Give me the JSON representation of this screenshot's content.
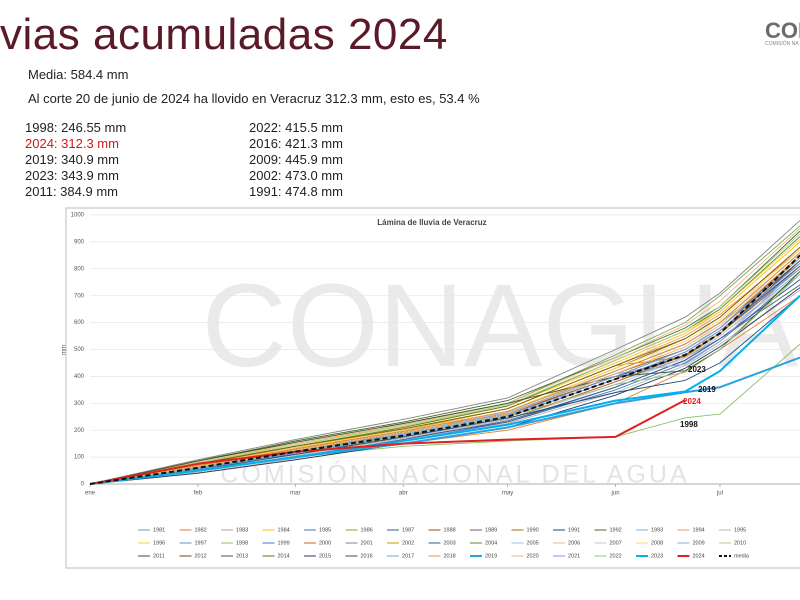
{
  "slide": {
    "title": "vias acumuladas 2024",
    "logo": "CON",
    "logo_sub": "COMISIÓN NA",
    "media": "Media: 584.4 mm",
    "corte": "Al corte 20 de junio de 2024 ha llovido en Veracruz 312.3 mm, esto es, 53.4 %",
    "stats_left": [
      "1998: 246.55 mm",
      "2024: 312.3 mm",
      "2019: 340.9 mm",
      "2023: 343.9 mm",
      "2011: 384.9 mm"
    ],
    "stats_right": [
      "2022: 415.5 mm",
      "2016: 421.3  mm",
      "2009: 445.9 mm",
      "2002: 473.0 mm",
      "1991: 474.8 mm"
    ],
    "watermark": "CONAGUA",
    "watermark_sub": "COMISIÓN NACIONAL DEL AGUA"
  },
  "chart_data": {
    "type": "line",
    "title": "Lámina de lluvia de Veracruz",
    "y_label": "mm",
    "x": [
      1,
      32,
      60,
      91,
      121,
      152,
      172,
      182,
      205
    ],
    "xlim": [
      1,
      205
    ],
    "xticks": [
      {
        "value": 1,
        "label": "ene"
      },
      {
        "value": 32,
        "label": "feb"
      },
      {
        "value": 60,
        "label": "mar"
      },
      {
        "value": 91,
        "label": "abr"
      },
      {
        "value": 121,
        "label": "may"
      },
      {
        "value": 152,
        "label": "jun"
      },
      {
        "value": 182,
        "label": "jul"
      }
    ],
    "ylim": [
      0,
      1000
    ],
    "yticks": [
      0,
      100,
      200,
      300,
      400,
      500,
      600,
      700,
      800,
      900,
      1000
    ],
    "grid": true,
    "annotations": [
      "2023",
      "2019",
      "2024",
      "1998"
    ],
    "series": [
      {
        "name": "1981",
        "color": "#5b9bd5",
        "values": [
          0,
          60,
          110,
          170,
          240,
          380,
          470,
          540,
          760
        ]
      },
      {
        "name": "1982",
        "color": "#ed7d31",
        "values": [
          0,
          40,
          90,
          150,
          200,
          300,
          420,
          500,
          700
        ]
      },
      {
        "name": "1983",
        "color": "#a5a5a5",
        "values": [
          0,
          80,
          140,
          200,
          260,
          420,
          520,
          600,
          820
        ]
      },
      {
        "name": "1984",
        "color": "#ffc000",
        "values": [
          0,
          70,
          130,
          210,
          290,
          450,
          560,
          640,
          900
        ]
      },
      {
        "name": "1985",
        "color": "#4472c4",
        "values": [
          0,
          50,
          100,
          160,
          230,
          350,
          450,
          530,
          780
        ]
      },
      {
        "name": "1986",
        "color": "#70ad47",
        "values": [
          0,
          90,
          150,
          220,
          300,
          480,
          600,
          700,
          960
        ]
      },
      {
        "name": "1987",
        "color": "#255e91",
        "values": [
          0,
          55,
          120,
          180,
          250,
          390,
          480,
          560,
          810
        ]
      },
      {
        "name": "1988",
        "color": "#9e480e",
        "values": [
          0,
          65,
          125,
          190,
          260,
          410,
          500,
          580,
          850
        ]
      },
      {
        "name": "1989",
        "color": "#636363",
        "values": [
          0,
          45,
          105,
          170,
          230,
          360,
          460,
          540,
          740
        ]
      },
      {
        "name": "1990",
        "color": "#997300",
        "values": [
          0,
          75,
          135,
          200,
          270,
          430,
          540,
          620,
          880
        ]
      },
      {
        "name": "1991",
        "color": "#264478",
        "values": [
          0,
          60,
          120,
          190,
          260,
          400,
          475,
          560,
          830
        ]
      },
      {
        "name": "1992",
        "color": "#43682b",
        "values": [
          0,
          85,
          160,
          230,
          310,
          470,
          580,
          660,
          940
        ]
      },
      {
        "name": "1993",
        "color": "#7cafdd",
        "values": [
          0,
          50,
          110,
          175,
          240,
          370,
          470,
          550,
          790
        ]
      },
      {
        "name": "1994",
        "color": "#f1975a",
        "values": [
          0,
          70,
          140,
          205,
          280,
          440,
          550,
          630,
          870
        ]
      },
      {
        "name": "1995",
        "color": "#b7b7b7",
        "values": [
          0,
          40,
          95,
          160,
          225,
          340,
          440,
          520,
          720
        ]
      },
      {
        "name": "1996",
        "color": "#ffcd33",
        "values": [
          0,
          80,
          150,
          215,
          290,
          450,
          560,
          650,
          910
        ]
      },
      {
        "name": "1997",
        "color": "#698ed0",
        "values": [
          0,
          60,
          115,
          180,
          250,
          390,
          490,
          570,
          820
        ]
      },
      {
        "name": "1998",
        "color": "#8cc168",
        "values": [
          0,
          45,
          100,
          140,
          160,
          175,
          246,
          260,
          520
        ]
      },
      {
        "name": "1999",
        "color": "#327dc2",
        "values": [
          0,
          70,
          130,
          195,
          270,
          420,
          520,
          600,
          860
        ]
      },
      {
        "name": "2000",
        "color": "#d26012",
        "values": [
          0,
          55,
          110,
          170,
          240,
          380,
          480,
          560,
          800
        ]
      },
      {
        "name": "2001",
        "color": "#848484",
        "values": [
          0,
          90,
          165,
          240,
          320,
          500,
          620,
          710,
          980
        ]
      },
      {
        "name": "2002",
        "color": "#cc9a00",
        "values": [
          0,
          65,
          130,
          200,
          280,
          440,
          473,
          560,
          850
        ]
      },
      {
        "name": "2003",
        "color": "#335aa1",
        "values": [
          0,
          50,
          100,
          165,
          235,
          360,
          460,
          540,
          760
        ]
      },
      {
        "name": "2004",
        "color": "#5a8a39",
        "values": [
          0,
          75,
          140,
          210,
          290,
          460,
          570,
          650,
          920
        ]
      },
      {
        "name": "2005",
        "color": "#9dc3e6",
        "values": [
          0,
          60,
          120,
          185,
          255,
          400,
          500,
          580,
          840
        ]
      },
      {
        "name": "2006",
        "color": "#f4b183",
        "values": [
          0,
          85,
          150,
          220,
          300,
          470,
          590,
          680,
          950
        ]
      },
      {
        "name": "2007",
        "color": "#c9c9c9",
        "values": [
          0,
          45,
          105,
          170,
          240,
          370,
          470,
          550,
          780
        ]
      },
      {
        "name": "2008",
        "color": "#ffd966",
        "values": [
          0,
          70,
          135,
          200,
          270,
          430,
          530,
          610,
          870
        ]
      },
      {
        "name": "2009",
        "color": "#8faadc",
        "values": [
          0,
          60,
          125,
          190,
          265,
          410,
          446,
          530,
          810
        ]
      },
      {
        "name": "2010",
        "color": "#a9d18e",
        "values": [
          0,
          80,
          145,
          215,
          295,
          460,
          570,
          660,
          930
        ]
      },
      {
        "name": "2011",
        "color": "#1f4e79",
        "values": [
          0,
          55,
          110,
          175,
          245,
          340,
          385,
          450,
          700
        ]
      },
      {
        "name": "2012",
        "color": "#843c0c",
        "values": [
          0,
          65,
          125,
          190,
          260,
          400,
          500,
          580,
          830
        ]
      },
      {
        "name": "2013",
        "color": "#525252",
        "values": [
          0,
          50,
          115,
          180,
          250,
          390,
          490,
          570,
          810
        ]
      },
      {
        "name": "2014",
        "color": "#7f6000",
        "values": [
          0,
          75,
          140,
          205,
          280,
          440,
          540,
          620,
          880
        ]
      },
      {
        "name": "2015",
        "color": "#203864",
        "values": [
          0,
          40,
          90,
          150,
          210,
          330,
          430,
          510,
          730
        ]
      },
      {
        "name": "2016",
        "color": "#385723",
        "values": [
          0,
          85,
          155,
          225,
          300,
          400,
          421,
          500,
          790
        ]
      },
      {
        "name": "2017",
        "color": "#6fa8dc",
        "values": [
          0,
          60,
          120,
          185,
          255,
          400,
          500,
          580,
          840
        ]
      },
      {
        "name": "2018",
        "color": "#e69138",
        "values": [
          0,
          70,
          130,
          195,
          270,
          420,
          520,
          600,
          860
        ]
      },
      {
        "name": "2019",
        "color": "#29a3e0",
        "bold": true,
        "values": [
          0,
          50,
          100,
          150,
          210,
          300,
          341,
          360,
          470
        ]
      },
      {
        "name": "2020",
        "color": "#f6b26b",
        "values": [
          0,
          65,
          125,
          190,
          260,
          410,
          510,
          590,
          850
        ]
      },
      {
        "name": "2021",
        "color": "#6d9eeb",
        "values": [
          0,
          55,
          115,
          180,
          250,
          390,
          490,
          570,
          800
        ]
      },
      {
        "name": "2022",
        "color": "#93c47d",
        "values": [
          0,
          60,
          120,
          180,
          250,
          370,
          415,
          500,
          780
        ]
      },
      {
        "name": "2023",
        "color": "#00b0f0",
        "bold": true,
        "values": [
          0,
          50,
          100,
          160,
          220,
          310,
          344,
          420,
          700
        ]
      },
      {
        "name": "2024",
        "color": "#e02020",
        "bold": true,
        "values": [
          0,
          75,
          120,
          150,
          165,
          175,
          312,
          null,
          null
        ]
      },
      {
        "name": "media",
        "color": "#111111",
        "bold": true,
        "dashed": true,
        "values": [
          0,
          60,
          120,
          180,
          250,
          390,
          480,
          560,
          850
        ]
      }
    ]
  }
}
